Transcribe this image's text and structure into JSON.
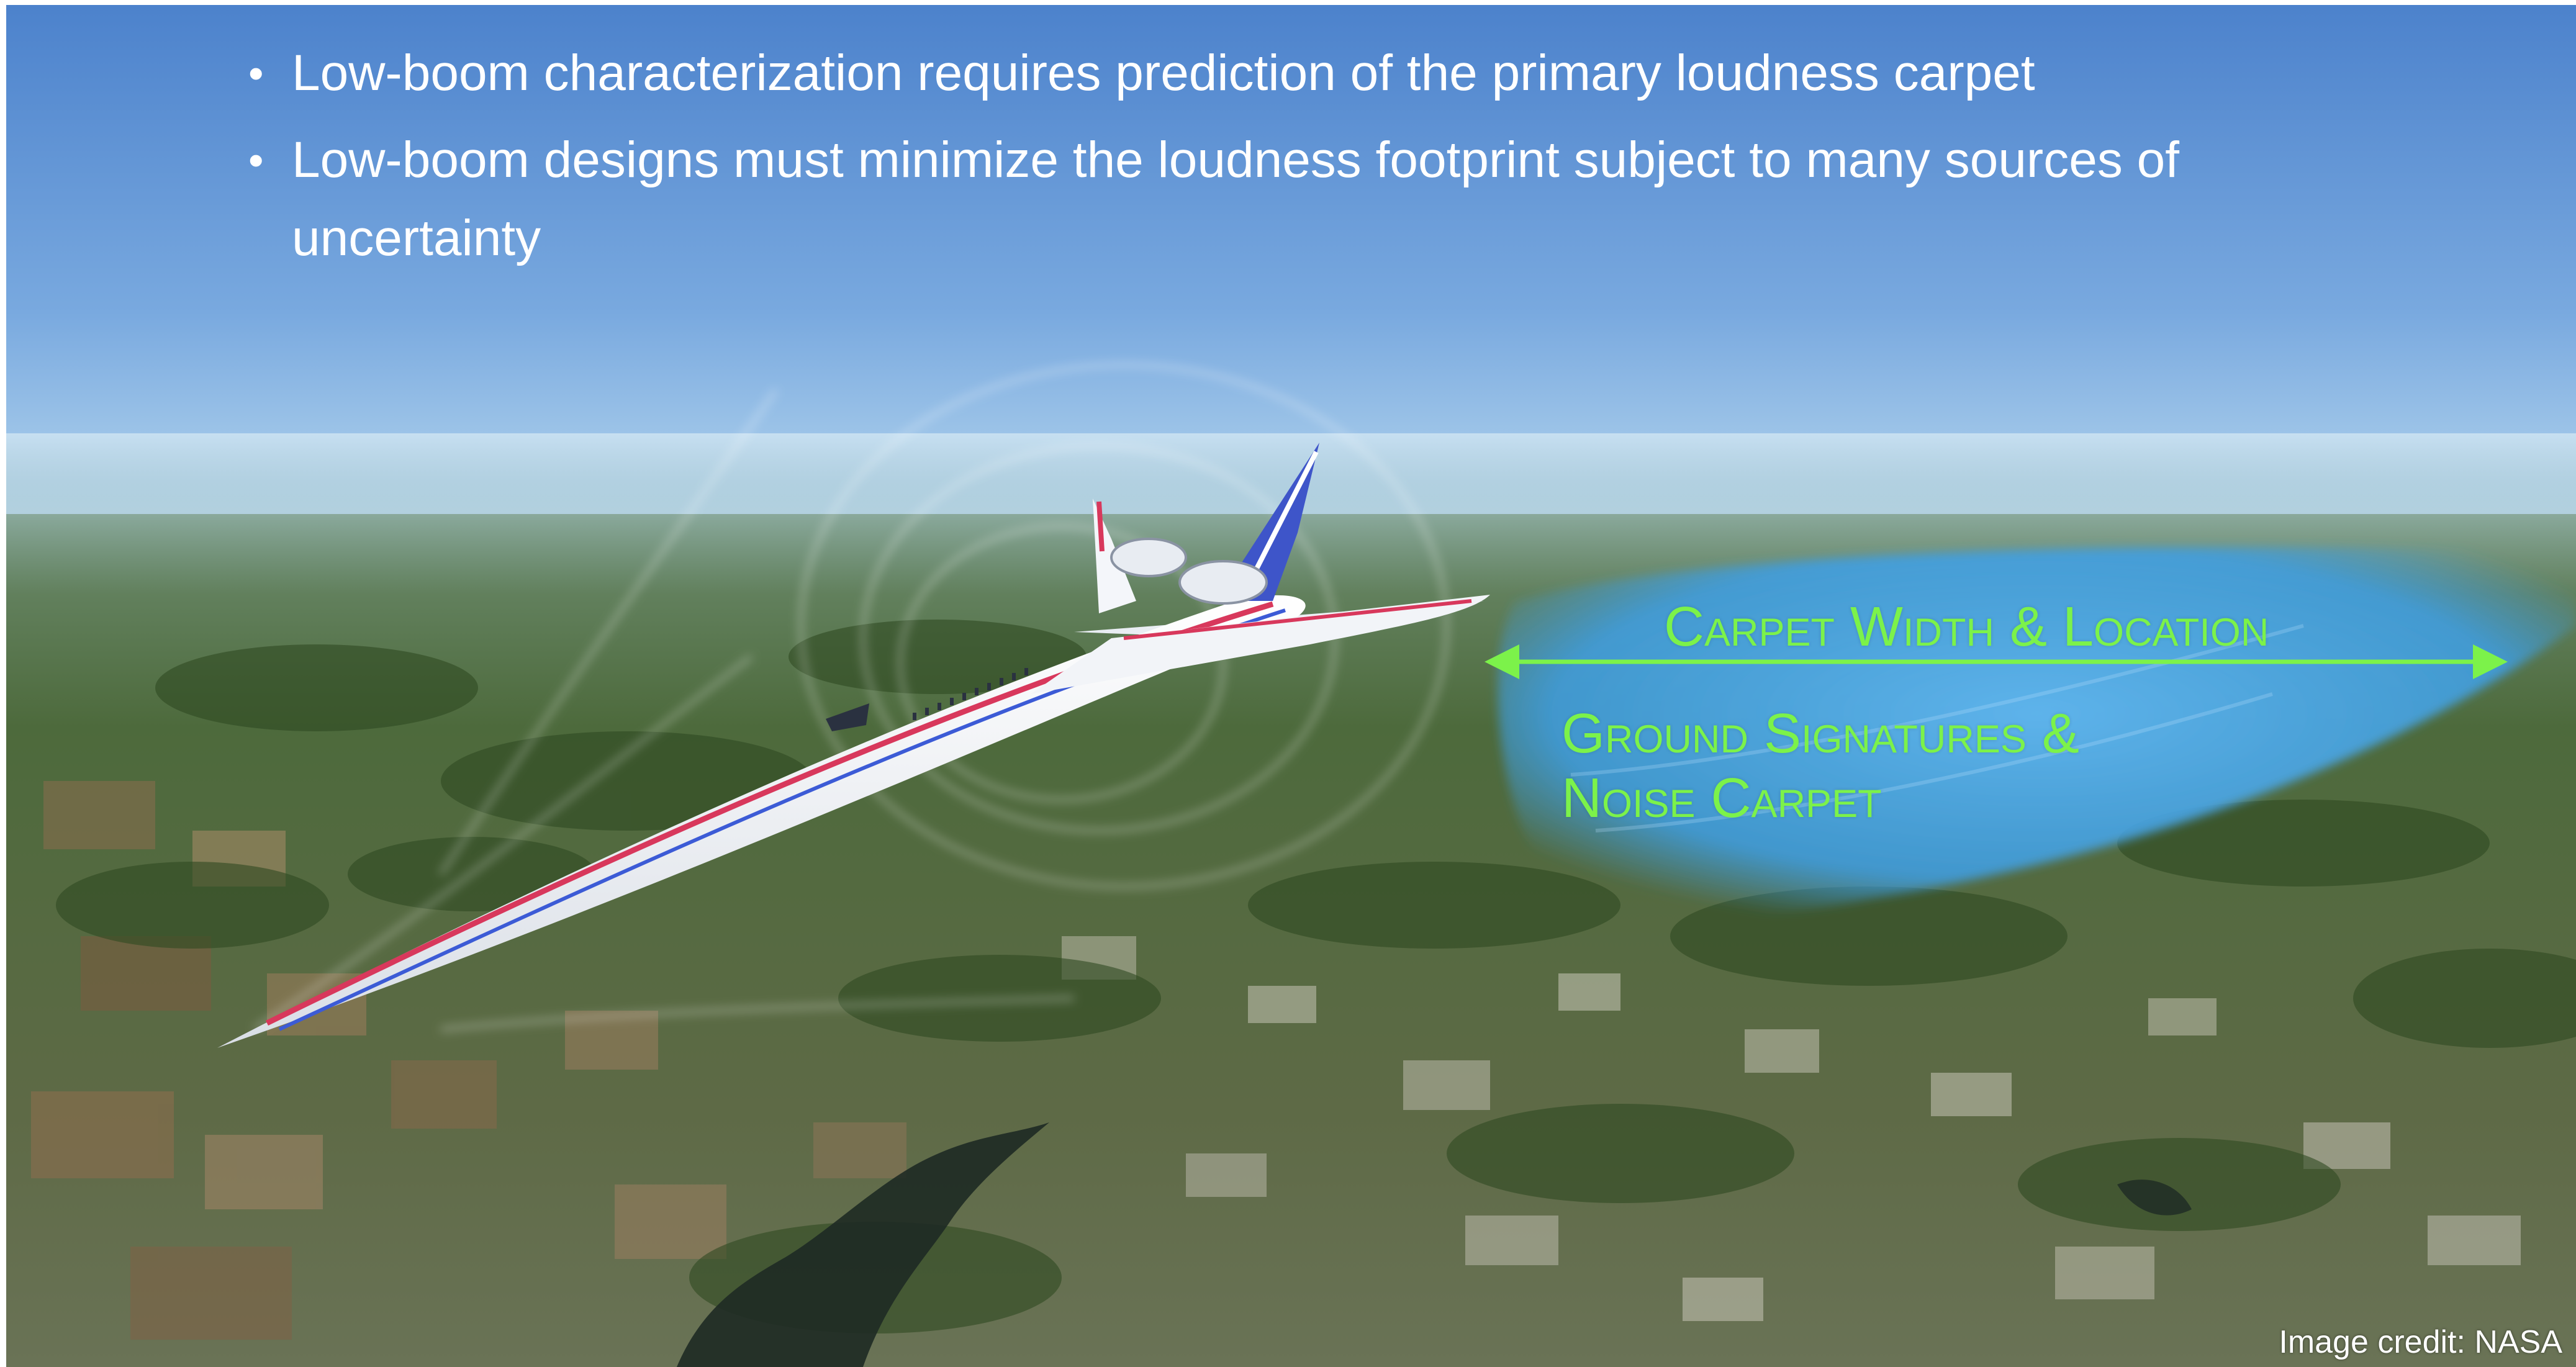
{
  "bullets": [
    "Low-boom characterization requires prediction of the primary loudness carpet",
    "Low-boom designs must minimize the loudness footprint subject to many sources of uncertainty"
  ],
  "bullet_glyph": "•",
  "annotations": {
    "carpet_width": "Carpet Width & Location",
    "ground_signatures": "Ground Signatures &",
    "noise_carpet": "Noise Carpet"
  },
  "credit": "Image credit: NASA",
  "colors": {
    "annotation": "#7CF24A",
    "sky_top": "#4F86CF",
    "sky_horizon": "#B7D7EE",
    "carpet": "#3FA2E8",
    "terrain": "#4F6B3B"
  }
}
